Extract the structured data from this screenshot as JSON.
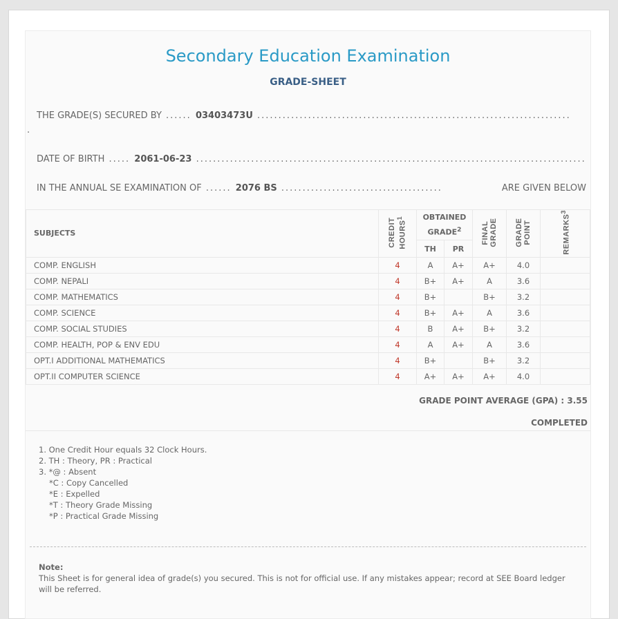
{
  "title": "Secondary Education Examination",
  "subtitle": "GRADE-SHEET",
  "info": {
    "secured_by_label": "THE GRADE(S) SECURED BY",
    "symbol_no": "03403473U",
    "dob_label": "DATE OF BIRTH",
    "dob": "2061-06-23",
    "exam_label": "IN THE ANNUAL SE EXAMINATION OF",
    "exam_year": "2076 BS",
    "exam_suffix": "ARE GIVEN BELOW"
  },
  "table": {
    "headers": {
      "subjects": "SUBJECTS",
      "credit": "CREDIT HOURS",
      "credit_sup": "1",
      "obtained": "OBTAINED GRADE",
      "obtained_sup": "2",
      "th": "TH",
      "pr": "PR",
      "final": "FINAL GRADE",
      "gp": "GRADE POINT",
      "remarks": "REMARKS",
      "remarks_sup": "3"
    },
    "rows": [
      {
        "subject": "COMP. ENGLISH",
        "credit": "4",
        "th": "A",
        "pr": "A+",
        "final": "A+",
        "gp": "4.0",
        "remarks": ""
      },
      {
        "subject": "COMP. NEPALI",
        "credit": "4",
        "th": "B+",
        "pr": "A+",
        "final": "A",
        "gp": "3.6",
        "remarks": ""
      },
      {
        "subject": "COMP. MATHEMATICS",
        "credit": "4",
        "th": "B+",
        "pr": "",
        "final": "B+",
        "gp": "3.2",
        "remarks": ""
      },
      {
        "subject": "COMP. SCIENCE",
        "credit": "4",
        "th": "B+",
        "pr": "A+",
        "final": "A",
        "gp": "3.6",
        "remarks": ""
      },
      {
        "subject": "COMP. SOCIAL STUDIES",
        "credit": "4",
        "th": "B",
        "pr": "A+",
        "final": "B+",
        "gp": "3.2",
        "remarks": ""
      },
      {
        "subject": "COMP. HEALTH, POP & ENV EDU",
        "credit": "4",
        "th": "A",
        "pr": "A+",
        "final": "A",
        "gp": "3.6",
        "remarks": ""
      },
      {
        "subject": "OPT.I ADDITIONAL MATHEMATICS",
        "credit": "4",
        "th": "B+",
        "pr": "",
        "final": "B+",
        "gp": "3.2",
        "remarks": ""
      },
      {
        "subject": "OPT.II COMPUTER SCIENCE",
        "credit": "4",
        "th": "A+",
        "pr": "A+",
        "final": "A+",
        "gp": "4.0",
        "remarks": ""
      }
    ]
  },
  "gpa": "GRADE POINT AVERAGE (GPA) : 3.55",
  "status": "COMPLETED",
  "notes": [
    "1. One Credit Hour equals 32 Clock Hours.",
    "2. TH : Theory, PR : Practical",
    "3. *@ : Absent",
    "*C : Copy Cancelled",
    "*E : Expelled",
    "*T : Theory Grade Missing",
    "*P : Practical Grade Missing"
  ],
  "note": {
    "label": "Note:",
    "text": "This Sheet is for general idea of grade(s) you secured. This is not for official use. If any mistakes appear; record at SEE Board ledger will be referred."
  },
  "colors": {
    "title": "#2a9ac6",
    "subtitle": "#3a5f86",
    "credit_text": "#c0392b"
  }
}
